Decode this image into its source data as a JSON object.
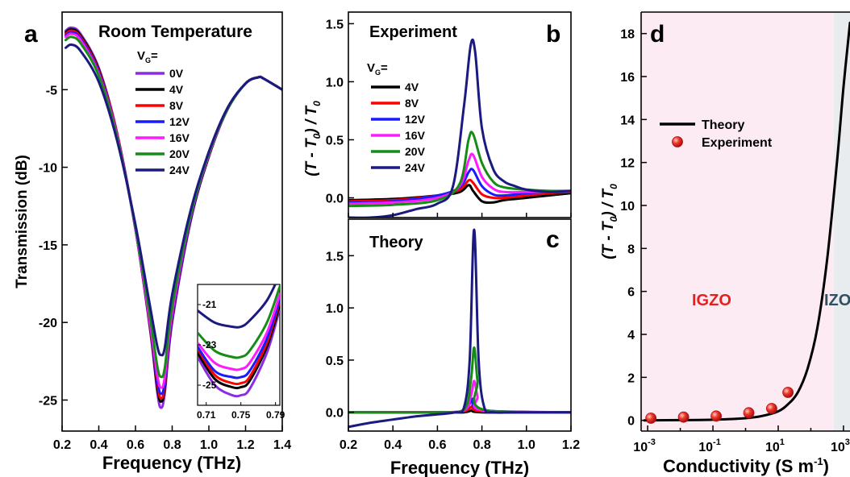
{
  "chart_data": [
    {
      "panel": "a",
      "type": "line",
      "title": "Room Temperature",
      "xlabel": "Frequency (THz)",
      "ylabel": "Transmission (dB)",
      "xlim": [
        0.2,
        1.4
      ],
      "ylim": [
        -27,
        0
      ],
      "xticks": [
        "0.2",
        "0.4",
        "0.6",
        "0.8",
        "1.0",
        "1.2",
        "1.4"
      ],
      "yticks": [
        "-5",
        "-10",
        "-15",
        "-20",
        "-25"
      ],
      "legend_title": "V",
      "legend_title_sub": "G",
      "legend_title_eq": "=",
      "legend_position": "top-right",
      "series": [
        {
          "name": "0V",
          "color": "#8b2be2",
          "x": [
            0.22,
            0.25,
            0.3,
            0.4,
            0.5,
            0.6,
            0.68,
            0.72,
            0.74,
            0.76,
            0.8,
            0.9,
            1.0,
            1.1,
            1.2,
            1.27,
            1.3,
            1.4
          ],
          "y": [
            -1.2,
            -1.0,
            -1.4,
            -3.6,
            -7.8,
            -14.0,
            -20.5,
            -24.6,
            -25.5,
            -24.5,
            -20.0,
            -13.5,
            -9.3,
            -6.3,
            -4.6,
            -4.2,
            -4.3,
            -5.0
          ]
        },
        {
          "name": "4V",
          "color": "#000000",
          "x": [
            0.22,
            0.25,
            0.3,
            0.4,
            0.5,
            0.6,
            0.68,
            0.72,
            0.74,
            0.76,
            0.8,
            0.9,
            1.0,
            1.1,
            1.2,
            1.27,
            1.3,
            1.4
          ],
          "y": [
            -1.3,
            -1.1,
            -1.5,
            -3.7,
            -7.9,
            -14.0,
            -20.4,
            -24.3,
            -25.1,
            -24.2,
            -19.8,
            -13.4,
            -9.3,
            -6.3,
            -4.6,
            -4.2,
            -4.3,
            -5.0
          ]
        },
        {
          "name": "8V",
          "color": "#ff0000",
          "x": [
            0.22,
            0.25,
            0.3,
            0.4,
            0.5,
            0.6,
            0.68,
            0.72,
            0.74,
            0.76,
            0.8,
            0.9,
            1.0,
            1.1,
            1.2,
            1.27,
            1.3,
            1.4
          ],
          "y": [
            -1.4,
            -1.2,
            -1.6,
            -3.8,
            -7.9,
            -14.0,
            -20.3,
            -24.0,
            -24.9,
            -24.0,
            -19.7,
            -13.3,
            -9.2,
            -6.3,
            -4.6,
            -4.2,
            -4.3,
            -5.0
          ]
        },
        {
          "name": "12V",
          "color": "#1a1aff",
          "x": [
            0.22,
            0.25,
            0.3,
            0.4,
            0.5,
            0.6,
            0.68,
            0.72,
            0.74,
            0.76,
            0.8,
            0.9,
            1.0,
            1.1,
            1.2,
            1.27,
            1.3,
            1.4
          ],
          "y": [
            -1.5,
            -1.3,
            -1.7,
            -3.9,
            -8.0,
            -14.0,
            -20.2,
            -23.8,
            -24.6,
            -23.8,
            -19.6,
            -13.3,
            -9.2,
            -6.3,
            -4.6,
            -4.2,
            -4.3,
            -5.0
          ]
        },
        {
          "name": "16V",
          "color": "#ff1aff",
          "x": [
            0.22,
            0.25,
            0.3,
            0.4,
            0.5,
            0.6,
            0.68,
            0.72,
            0.74,
            0.76,
            0.8,
            0.9,
            1.0,
            1.1,
            1.2,
            1.27,
            1.3,
            1.4
          ],
          "y": [
            -1.6,
            -1.4,
            -1.8,
            -4.0,
            -8.0,
            -14.0,
            -20.1,
            -23.5,
            -24.2,
            -23.5,
            -19.4,
            -13.2,
            -9.2,
            -6.3,
            -4.6,
            -4.2,
            -4.3,
            -5.0
          ]
        },
        {
          "name": "20V",
          "color": "#168c16",
          "x": [
            0.22,
            0.25,
            0.3,
            0.4,
            0.5,
            0.6,
            0.68,
            0.72,
            0.74,
            0.76,
            0.8,
            0.9,
            1.0,
            1.1,
            1.2,
            1.27,
            1.3,
            1.4
          ],
          "y": [
            -1.8,
            -1.6,
            -2.0,
            -4.1,
            -8.1,
            -13.9,
            -19.7,
            -22.9,
            -23.5,
            -22.9,
            -19.0,
            -13.1,
            -9.1,
            -6.3,
            -4.6,
            -4.2,
            -4.3,
            -5.0
          ]
        },
        {
          "name": "24V",
          "color": "#1a1a80",
          "x": [
            0.22,
            0.25,
            0.3,
            0.4,
            0.5,
            0.6,
            0.68,
            0.72,
            0.74,
            0.76,
            0.8,
            0.9,
            1.0,
            1.1,
            1.2,
            1.27,
            1.3,
            1.4
          ],
          "y": [
            -2.3,
            -2.1,
            -2.5,
            -4.5,
            -8.3,
            -13.7,
            -19.0,
            -21.6,
            -22.1,
            -21.6,
            -18.2,
            -12.8,
            -9.0,
            -6.2,
            -4.6,
            -4.2,
            -4.3,
            -5.0
          ]
        }
      ]
    },
    {
      "panel": "a-inset",
      "type": "line",
      "xlim": [
        0.7,
        0.795
      ],
      "ylim": [
        -26,
        -20
      ],
      "xticks": [
        "0.71",
        "0.75",
        "0.79"
      ],
      "yticks": [
        "-21",
        "-23",
        "-25"
      ],
      "series": [
        {
          "name": "0V",
          "color": "#8b2be2",
          "x": [
            0.7,
            0.72,
            0.74,
            0.75,
            0.76,
            0.78,
            0.795
          ],
          "y": [
            -23.6,
            -25.0,
            -25.5,
            -25.5,
            -25.2,
            -23.4,
            -21.2
          ]
        },
        {
          "name": "4V",
          "color": "#000000",
          "x": [
            0.7,
            0.72,
            0.74,
            0.75,
            0.76,
            0.78,
            0.795
          ],
          "y": [
            -23.4,
            -24.7,
            -25.1,
            -25.1,
            -24.8,
            -23.1,
            -21.0
          ]
        },
        {
          "name": "8V",
          "color": "#ff0000",
          "x": [
            0.7,
            0.72,
            0.74,
            0.75,
            0.76,
            0.78,
            0.795
          ],
          "y": [
            -23.2,
            -24.5,
            -24.9,
            -24.9,
            -24.6,
            -22.9,
            -20.8
          ]
        },
        {
          "name": "12V",
          "color": "#1a1aff",
          "x": [
            0.7,
            0.72,
            0.74,
            0.75,
            0.76,
            0.78,
            0.795
          ],
          "y": [
            -23.1,
            -24.3,
            -24.6,
            -24.6,
            -24.3,
            -22.7,
            -20.7
          ]
        },
        {
          "name": "16V",
          "color": "#ff1aff",
          "x": [
            0.7,
            0.72,
            0.74,
            0.75,
            0.76,
            0.78,
            0.795
          ],
          "y": [
            -22.9,
            -23.9,
            -24.2,
            -24.2,
            -23.9,
            -22.4,
            -20.5
          ]
        },
        {
          "name": "20V",
          "color": "#168c16",
          "x": [
            0.7,
            0.72,
            0.74,
            0.75,
            0.76,
            0.78,
            0.795
          ],
          "y": [
            -22.4,
            -23.3,
            -23.6,
            -23.6,
            -23.3,
            -21.9,
            -20.1
          ]
        },
        {
          "name": "24V",
          "color": "#1a1a80",
          "x": [
            0.7,
            0.72,
            0.74,
            0.75,
            0.76,
            0.78,
            0.795
          ],
          "y": [
            -21.3,
            -21.9,
            -22.1,
            -22.1,
            -21.8,
            -20.8,
            -19.5
          ]
        }
      ]
    },
    {
      "panel": "b",
      "type": "line",
      "title": "Experiment",
      "ylabel_parts": [
        "(T - T",
        "0",
        ") / T",
        "0"
      ],
      "xlim": [
        0.2,
        1.2
      ],
      "ylim": [
        -0.17,
        1.6
      ],
      "yticks": [
        "0.0",
        "0.5",
        "1.0",
        "1.5"
      ],
      "legend_title": "V",
      "legend_title_sub": "G",
      "legend_title_eq": "=",
      "legend_position": "top-left",
      "series": [
        {
          "name": "4V",
          "color": "#000000",
          "x": [
            0.2,
            0.4,
            0.6,
            0.7,
            0.74,
            0.76,
            0.8,
            0.85,
            0.9,
            1.0,
            1.1,
            1.2
          ],
          "y": [
            -0.02,
            -0.01,
            0.02,
            0.05,
            0.11,
            0.06,
            -0.03,
            -0.04,
            -0.02,
            0.0,
            0.02,
            0.04
          ]
        },
        {
          "name": "8V",
          "color": "#ff0000",
          "x": [
            0.2,
            0.4,
            0.6,
            0.7,
            0.74,
            0.76,
            0.8,
            0.85,
            0.9,
            1.0,
            1.1,
            1.2
          ],
          "y": [
            -0.03,
            -0.02,
            0.02,
            0.07,
            0.15,
            0.13,
            0.03,
            0.0,
            0.0,
            0.02,
            0.04,
            0.05
          ]
        },
        {
          "name": "12V",
          "color": "#1a1aff",
          "x": [
            0.2,
            0.4,
            0.6,
            0.7,
            0.74,
            0.76,
            0.8,
            0.85,
            0.9,
            1.0,
            1.1,
            1.2
          ],
          "y": [
            -0.04,
            -0.03,
            0.02,
            0.09,
            0.22,
            0.24,
            0.1,
            0.03,
            0.02,
            0.04,
            0.05,
            0.06
          ]
        },
        {
          "name": "16V",
          "color": "#ff1aff",
          "x": [
            0.2,
            0.4,
            0.6,
            0.7,
            0.74,
            0.76,
            0.8,
            0.85,
            0.9,
            1.0,
            1.1,
            1.2
          ],
          "y": [
            -0.05,
            -0.04,
            0.0,
            0.1,
            0.32,
            0.37,
            0.18,
            0.08,
            0.05,
            0.05,
            0.05,
            0.06
          ]
        },
        {
          "name": "20V",
          "color": "#168c16",
          "x": [
            0.2,
            0.4,
            0.6,
            0.7,
            0.74,
            0.76,
            0.8,
            0.85,
            0.9,
            1.0,
            1.1,
            1.2
          ],
          "y": [
            -0.07,
            -0.06,
            -0.02,
            0.12,
            0.5,
            0.55,
            0.3,
            0.14,
            0.09,
            0.07,
            0.06,
            0.06
          ]
        },
        {
          "name": "24V",
          "color": "#1a1a80",
          "x": [
            0.2,
            0.3,
            0.4,
            0.5,
            0.6,
            0.67,
            0.72,
            0.75,
            0.77,
            0.8,
            0.85,
            0.9,
            0.95,
            1.0,
            1.1,
            1.2
          ],
          "y": [
            -0.17,
            -0.17,
            -0.15,
            -0.1,
            -0.05,
            0.1,
            0.8,
            1.32,
            1.25,
            0.6,
            0.25,
            0.14,
            0.1,
            0.07,
            0.05,
            0.06
          ]
        }
      ]
    },
    {
      "panel": "c",
      "type": "line",
      "title": "Theory",
      "xlabel": "Frequency (THz)",
      "xlim": [
        0.2,
        1.2
      ],
      "ylim": [
        -0.18,
        1.85
      ],
      "xticks": [
        "0.2",
        "0.4",
        "0.6",
        "0.8",
        "1.0",
        "1.2"
      ],
      "yticks": [
        "0.0",
        "0.5",
        "1.0",
        "1.5"
      ],
      "series": [
        {
          "name": "4V",
          "color": "#000000",
          "x": [
            0.2,
            0.6,
            0.72,
            0.76,
            0.8,
            1.2
          ],
          "y": [
            0.0,
            0.0,
            0.0,
            0.02,
            0.0,
            0.0
          ]
        },
        {
          "name": "8V",
          "color": "#ff0000",
          "x": [
            0.2,
            0.6,
            0.72,
            0.76,
            0.8,
            1.2
          ],
          "y": [
            0.0,
            0.0,
            0.01,
            0.06,
            0.01,
            0.0
          ]
        },
        {
          "name": "12V",
          "color": "#1a1aff",
          "x": [
            0.2,
            0.6,
            0.72,
            0.76,
            0.8,
            1.2
          ],
          "y": [
            0.0,
            0.0,
            0.02,
            0.13,
            0.02,
            0.0
          ]
        },
        {
          "name": "16V",
          "color": "#ff1aff",
          "x": [
            0.2,
            0.6,
            0.72,
            0.75,
            0.765,
            0.78,
            0.8,
            1.2
          ],
          "y": [
            0.0,
            0.0,
            0.02,
            0.15,
            0.3,
            0.15,
            0.02,
            0.0
          ]
        },
        {
          "name": "20V",
          "color": "#168c16",
          "x": [
            0.2,
            0.6,
            0.72,
            0.75,
            0.765,
            0.78,
            0.8,
            1.2
          ],
          "y": [
            0.0,
            0.0,
            0.03,
            0.3,
            0.62,
            0.3,
            0.03,
            0.0
          ]
        },
        {
          "name": "24V",
          "color": "#1a1a80",
          "x": [
            0.2,
            0.3,
            0.4,
            0.5,
            0.6,
            0.68,
            0.72,
            0.745,
            0.765,
            0.785,
            0.81,
            0.85,
            0.95,
            1.2
          ],
          "y": [
            -0.14,
            -0.1,
            -0.07,
            -0.04,
            -0.02,
            0.0,
            0.05,
            0.5,
            1.75,
            0.5,
            0.05,
            0.0,
            0.0,
            0.0
          ]
        }
      ]
    },
    {
      "panel": "d",
      "type": "line",
      "ylabel_parts": [
        "(T - T",
        "0",
        ") / T",
        "0"
      ],
      "xlabel_parts": [
        "Conductivity (S m",
        "-1",
        ")"
      ],
      "xscale": "log",
      "xlim_log10": [
        -3.2,
        3.2
      ],
      "ylim": [
        -0.5,
        19
      ],
      "xticks_log10": [
        -3,
        -1,
        1,
        3
      ],
      "xtick_base": "10",
      "yticks": [
        "0",
        "2",
        "4",
        "6",
        "8",
        "10",
        "12",
        "14",
        "16",
        "18"
      ],
      "regions": [
        {
          "label": "IGZO",
          "color": "#e81e1e",
          "fill": "#fcebf3",
          "from_log10": -3.2,
          "to_log10": 2.7
        },
        {
          "label": "IZO",
          "color": "#2e5060",
          "fill": "#e9ecef",
          "from_log10": 2.7,
          "to_log10": 3.2
        }
      ],
      "legend_position": "upper-left",
      "series": [
        {
          "name": "Theory",
          "color": "#000000",
          "kind": "line",
          "x_log10": [
            -3.1,
            -2,
            -1,
            0,
            0.5,
            1,
            1.3,
            1.6,
            1.9,
            2.2,
            2.5,
            2.8,
            3.0,
            3.2
          ],
          "y": [
            0.0,
            0.01,
            0.03,
            0.1,
            0.2,
            0.42,
            0.75,
            1.3,
            2.4,
            4.3,
            7.5,
            12.0,
            15.5,
            18.5
          ]
        },
        {
          "name": "Experiment",
          "color": "#e81e1e",
          "kind": "scatter",
          "x_log10": [
            -2.9,
            -1.9,
            -0.9,
            0.1,
            0.8,
            1.3
          ],
          "y": [
            0.1,
            0.15,
            0.2,
            0.35,
            0.55,
            1.3
          ]
        }
      ]
    }
  ],
  "panel_letters": {
    "a": "a",
    "b": "b",
    "c": "c",
    "d": "d"
  }
}
